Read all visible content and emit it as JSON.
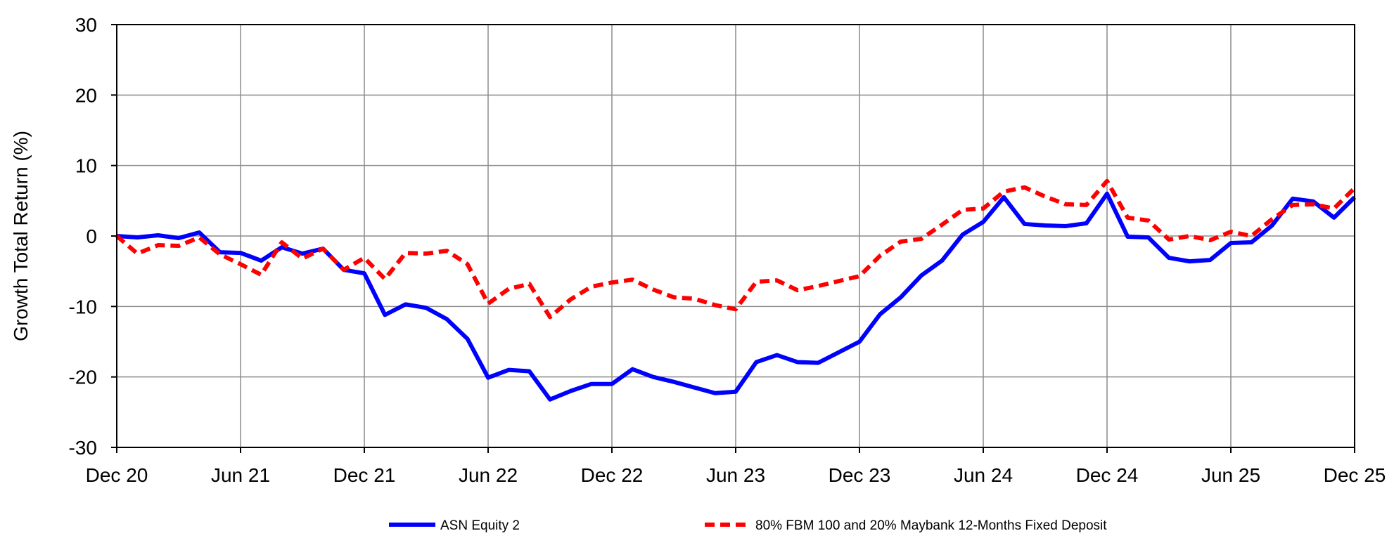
{
  "chart_data": {
    "type": "line",
    "ylabel": "Growth Total Return (%)",
    "ylim": [
      -30,
      30
    ],
    "yticks": [
      "30",
      "20",
      "10",
      "0",
      "-10",
      "-20",
      "-30"
    ],
    "ytick_values": [
      30,
      20,
      10,
      0,
      -10,
      -20,
      -30
    ],
    "x_tick_labels": [
      "Dec 20",
      "Jun 21",
      "Dec 21",
      "Jun 22",
      "Dec 22",
      "Jun 23",
      "Dec 23",
      "Jun 24",
      "Dec 24",
      "Jun 25",
      "Dec 25"
    ],
    "x_range_months": [
      0,
      60
    ],
    "grid": true,
    "legend_position": "bottom",
    "series": [
      {
        "name": "ASN Equity 2",
        "color": "#0000ff",
        "style": "solid",
        "values": [
          0,
          -0.2,
          0.1,
          -0.3,
          0.5,
          -2.3,
          -2.4,
          -3.5,
          -1.6,
          -2.5,
          -1.8,
          -4.8,
          -5.3,
          -11.2,
          -9.7,
          -10.2,
          -11.8,
          -14.6,
          -20.1,
          -19.0,
          -19.2,
          -23.2,
          -22.0,
          -21.0,
          -21.0,
          -18.9,
          -20.0,
          -20.7,
          -21.5,
          -22.3,
          -22.1,
          -17.9,
          -16.9,
          -17.9,
          -18.0,
          -16.5,
          -15.0,
          -11.1,
          -8.7,
          -5.6,
          -3.5,
          0.2,
          2.0,
          5.5,
          1.7,
          1.5,
          1.4,
          1.8,
          6.0,
          -0.1,
          -0.2,
          -3.1,
          -3.6,
          -3.4,
          -1.0,
          -0.9,
          1.5,
          5.3,
          4.9,
          2.6,
          5.5
        ]
      },
      {
        "name": "80% FBM 100 and 20% Maybank 12-Months Fixed Deposit",
        "color": "#ff0000",
        "style": "dashed",
        "values": [
          0,
          -2.5,
          -1.3,
          -1.4,
          -0.2,
          -2.6,
          -4.0,
          -5.5,
          -0.9,
          -3.2,
          -1.8,
          -4.8,
          -3.1,
          -6.1,
          -2.4,
          -2.5,
          -2.1,
          -4.0,
          -9.6,
          -7.5,
          -6.8,
          -11.5,
          -9.0,
          -7.2,
          -6.6,
          -6.2,
          -7.6,
          -8.7,
          -8.9,
          -9.8,
          -10.4,
          -6.5,
          -6.3,
          -7.7,
          -7.1,
          -6.4,
          -5.7,
          -2.8,
          -0.8,
          -0.4,
          1.6,
          3.7,
          3.9,
          6.3,
          6.9,
          5.6,
          4.5,
          4.4,
          7.8,
          2.6,
          2.2,
          -0.5,
          0.0,
          -0.6,
          0.6,
          0.0,
          2.4,
          4.4,
          4.5,
          3.9,
          6.8
        ]
      }
    ]
  }
}
